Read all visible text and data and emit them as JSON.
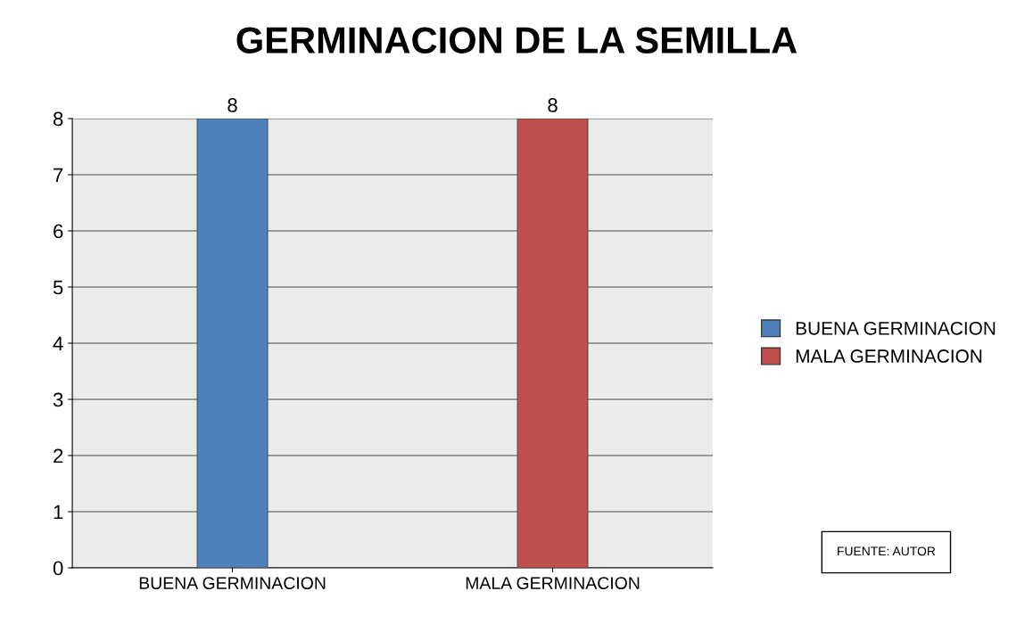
{
  "chart_data": {
    "type": "bar",
    "title": "GERMINACION DE LA SEMILLA",
    "categories": [
      "BUENA GERMINACION",
      "MALA GERMINACION"
    ],
    "series": [
      {
        "name": "BUENA GERMINACION",
        "color": "#4f81bd",
        "values": [
          8,
          null
        ]
      },
      {
        "name": "MALA GERMINACION",
        "color": "#c0504d",
        "values": [
          null,
          8
        ]
      }
    ],
    "ylim": [
      0,
      8
    ],
    "yticks": [
      0,
      1,
      2,
      3,
      4,
      5,
      6,
      7,
      8
    ],
    "grid": "y",
    "legend": "right",
    "data_labels": true,
    "annotations": [
      "FUENTE: AUTOR"
    ]
  }
}
